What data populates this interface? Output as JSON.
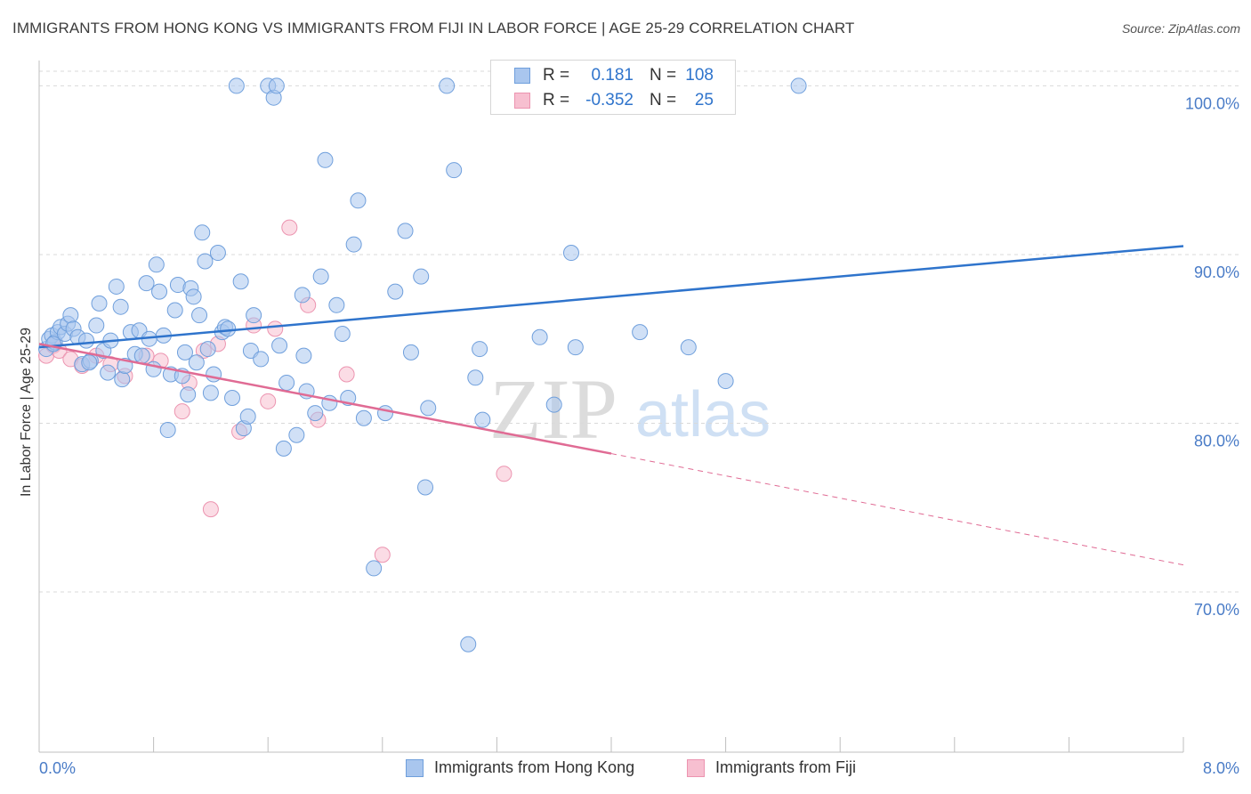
{
  "title": "IMMIGRANTS FROM HONG KONG VS IMMIGRANTS FROM FIJI IN LABOR FORCE | AGE 25-29 CORRELATION CHART",
  "source": "Source: ZipAtlas.com",
  "watermark": {
    "zip": "ZIP",
    "atlas": "atlas"
  },
  "colors": {
    "blue_fill": "#a9c6ee",
    "blue_stroke": "#6f9fdc",
    "blue_line": "#2f74cc",
    "pink_fill": "#f7bfd0",
    "pink_stroke": "#ec94b0",
    "pink_line": "#e06b94",
    "axis_text": "#4a7cc7",
    "grid": "#d9d9d9"
  },
  "legend": {
    "rows": [
      {
        "r_label": "R =",
        "r_value": "0.181",
        "n_label": "N =",
        "n_value": "108"
      },
      {
        "r_label": "R =",
        "r_value": "-0.352",
        "n_label": "N =",
        "n_value": "25"
      }
    ]
  },
  "bottom_legend": {
    "series1": "Immigrants from Hong Kong",
    "series2": "Immigrants from Fiji"
  },
  "chart_data": {
    "type": "scatter",
    "title": "IMMIGRANTS FROM HONG KONG VS IMMIGRANTS FROM FIJI IN LABOR FORCE | AGE 25-29 CORRELATION CHART",
    "xlabel": "",
    "ylabel": "In Labor Force | Age 25-29",
    "xlim": [
      0,
      8
    ],
    "ylim": [
      60.5,
      101.5
    ],
    "x_tick_labels": [
      "0.0%",
      "8.0%"
    ],
    "y_ticks": [
      70,
      80,
      90,
      100
    ],
    "y_tick_labels": [
      "70.0%",
      "80.0%",
      "90.0%",
      "100.0%"
    ],
    "grid": true,
    "legend_position": "top-center",
    "series": [
      {
        "name": "Immigrants from Hong Kong",
        "color": "#a9c6ee",
        "points": [
          [
            0.05,
            84.4
          ],
          [
            0.07,
            85.0
          ],
          [
            0.09,
            85.2
          ],
          [
            0.11,
            84.8
          ],
          [
            0.13,
            85.4
          ],
          [
            0.15,
            85.7
          ],
          [
            0.18,
            85.3
          ],
          [
            0.2,
            85.9
          ],
          [
            0.22,
            86.4
          ],
          [
            0.24,
            85.6
          ],
          [
            0.27,
            85.1
          ],
          [
            0.3,
            83.5
          ],
          [
            0.33,
            84.9
          ],
          [
            0.36,
            83.7
          ],
          [
            0.4,
            85.8
          ],
          [
            0.42,
            87.1
          ],
          [
            0.45,
            84.3
          ],
          [
            0.48,
            83.0
          ],
          [
            0.5,
            84.9
          ],
          [
            0.54,
            88.1
          ],
          [
            0.57,
            86.9
          ],
          [
            0.58,
            82.6
          ],
          [
            0.6,
            83.4
          ],
          [
            0.64,
            85.4
          ],
          [
            0.67,
            84.1
          ],
          [
            0.7,
            85.5
          ],
          [
            0.72,
            84.0
          ],
          [
            0.75,
            88.3
          ],
          [
            0.77,
            85.0
          ],
          [
            0.8,
            83.2
          ],
          [
            0.82,
            89.4
          ],
          [
            0.84,
            87.8
          ],
          [
            0.87,
            85.2
          ],
          [
            0.9,
            79.6
          ],
          [
            0.92,
            82.9
          ],
          [
            0.95,
            86.7
          ],
          [
            0.97,
            88.2
          ],
          [
            1.0,
            82.8
          ],
          [
            1.02,
            84.2
          ],
          [
            1.04,
            81.7
          ],
          [
            1.06,
            88.0
          ],
          [
            1.08,
            87.5
          ],
          [
            1.1,
            83.6
          ],
          [
            1.12,
            86.4
          ],
          [
            1.14,
            91.3
          ],
          [
            1.16,
            89.6
          ],
          [
            1.18,
            84.4
          ],
          [
            1.2,
            81.8
          ],
          [
            1.22,
            82.9
          ],
          [
            1.25,
            90.1
          ],
          [
            1.28,
            85.4
          ],
          [
            1.3,
            85.7
          ],
          [
            1.32,
            85.6
          ],
          [
            1.35,
            81.5
          ],
          [
            1.38,
            100.0
          ],
          [
            1.41,
            88.4
          ],
          [
            1.43,
            79.7
          ],
          [
            1.46,
            80.4
          ],
          [
            1.48,
            84.3
          ],
          [
            1.5,
            86.4
          ],
          [
            1.55,
            83.8
          ],
          [
            1.6,
            100.0
          ],
          [
            1.64,
            99.3
          ],
          [
            1.66,
            100.0
          ],
          [
            1.68,
            84.6
          ],
          [
            1.71,
            78.5
          ],
          [
            1.73,
            82.4
          ],
          [
            1.8,
            79.3
          ],
          [
            1.84,
            87.6
          ],
          [
            1.87,
            81.9
          ],
          [
            1.93,
            80.6
          ],
          [
            1.97,
            88.7
          ],
          [
            2.0,
            95.6
          ],
          [
            2.03,
            81.2
          ],
          [
            2.08,
            87.0
          ],
          [
            2.12,
            85.3
          ],
          [
            2.16,
            81.5
          ],
          [
            2.2,
            90.6
          ],
          [
            2.23,
            93.2
          ],
          [
            2.27,
            80.3
          ],
          [
            2.34,
            71.4
          ],
          [
            2.42,
            80.6
          ],
          [
            2.49,
            87.8
          ],
          [
            2.56,
            91.4
          ],
          [
            2.6,
            84.2
          ],
          [
            2.67,
            88.7
          ],
          [
            2.7,
            76.2
          ],
          [
            2.72,
            80.9
          ],
          [
            2.85,
            100.0
          ],
          [
            2.9,
            95.0
          ],
          [
            3.0,
            66.9
          ],
          [
            3.05,
            82.7
          ],
          [
            3.08,
            84.4
          ],
          [
            3.1,
            80.2
          ],
          [
            3.28,
            100.0
          ],
          [
            3.5,
            85.1
          ],
          [
            3.6,
            81.1
          ],
          [
            3.72,
            90.1
          ],
          [
            3.75,
            84.5
          ],
          [
            3.8,
            100.0
          ],
          [
            4.05,
            100.0
          ],
          [
            4.2,
            85.4
          ],
          [
            4.54,
            84.5
          ],
          [
            4.8,
            82.5
          ],
          [
            5.31,
            100.0
          ],
          [
            0.1,
            84.7
          ],
          [
            0.35,
            83.6
          ],
          [
            1.85,
            84.0
          ]
        ]
      },
      {
        "name": "Immigrants from Fiji",
        "color": "#f7bfd0",
        "points": [
          [
            0.05,
            84.0
          ],
          [
            0.1,
            84.6
          ],
          [
            0.14,
            84.3
          ],
          [
            0.22,
            83.8
          ],
          [
            0.3,
            83.4
          ],
          [
            0.4,
            84.0
          ],
          [
            0.5,
            83.5
          ],
          [
            0.6,
            82.8
          ],
          [
            0.75,
            84.0
          ],
          [
            0.85,
            83.7
          ],
          [
            1.0,
            80.7
          ],
          [
            1.05,
            82.4
          ],
          [
            1.15,
            84.3
          ],
          [
            1.25,
            84.7
          ],
          [
            1.2,
            74.9
          ],
          [
            1.4,
            79.5
          ],
          [
            1.5,
            85.8
          ],
          [
            1.6,
            81.3
          ],
          [
            1.65,
            85.6
          ],
          [
            1.75,
            91.6
          ],
          [
            1.88,
            87.0
          ],
          [
            1.95,
            80.2
          ],
          [
            2.15,
            82.9
          ],
          [
            2.4,
            72.2
          ],
          [
            3.25,
            77.0
          ]
        ]
      }
    ],
    "trendlines": [
      {
        "series": "Immigrants from Hong Kong",
        "from": [
          0,
          84.5
        ],
        "to": [
          8,
          90.5
        ]
      },
      {
        "series": "Immigrants from Fiji",
        "solid_from": [
          0,
          84.7
        ],
        "solid_to": [
          4,
          78.2
        ],
        "dashed_to": [
          8,
          71.6
        ]
      }
    ]
  }
}
